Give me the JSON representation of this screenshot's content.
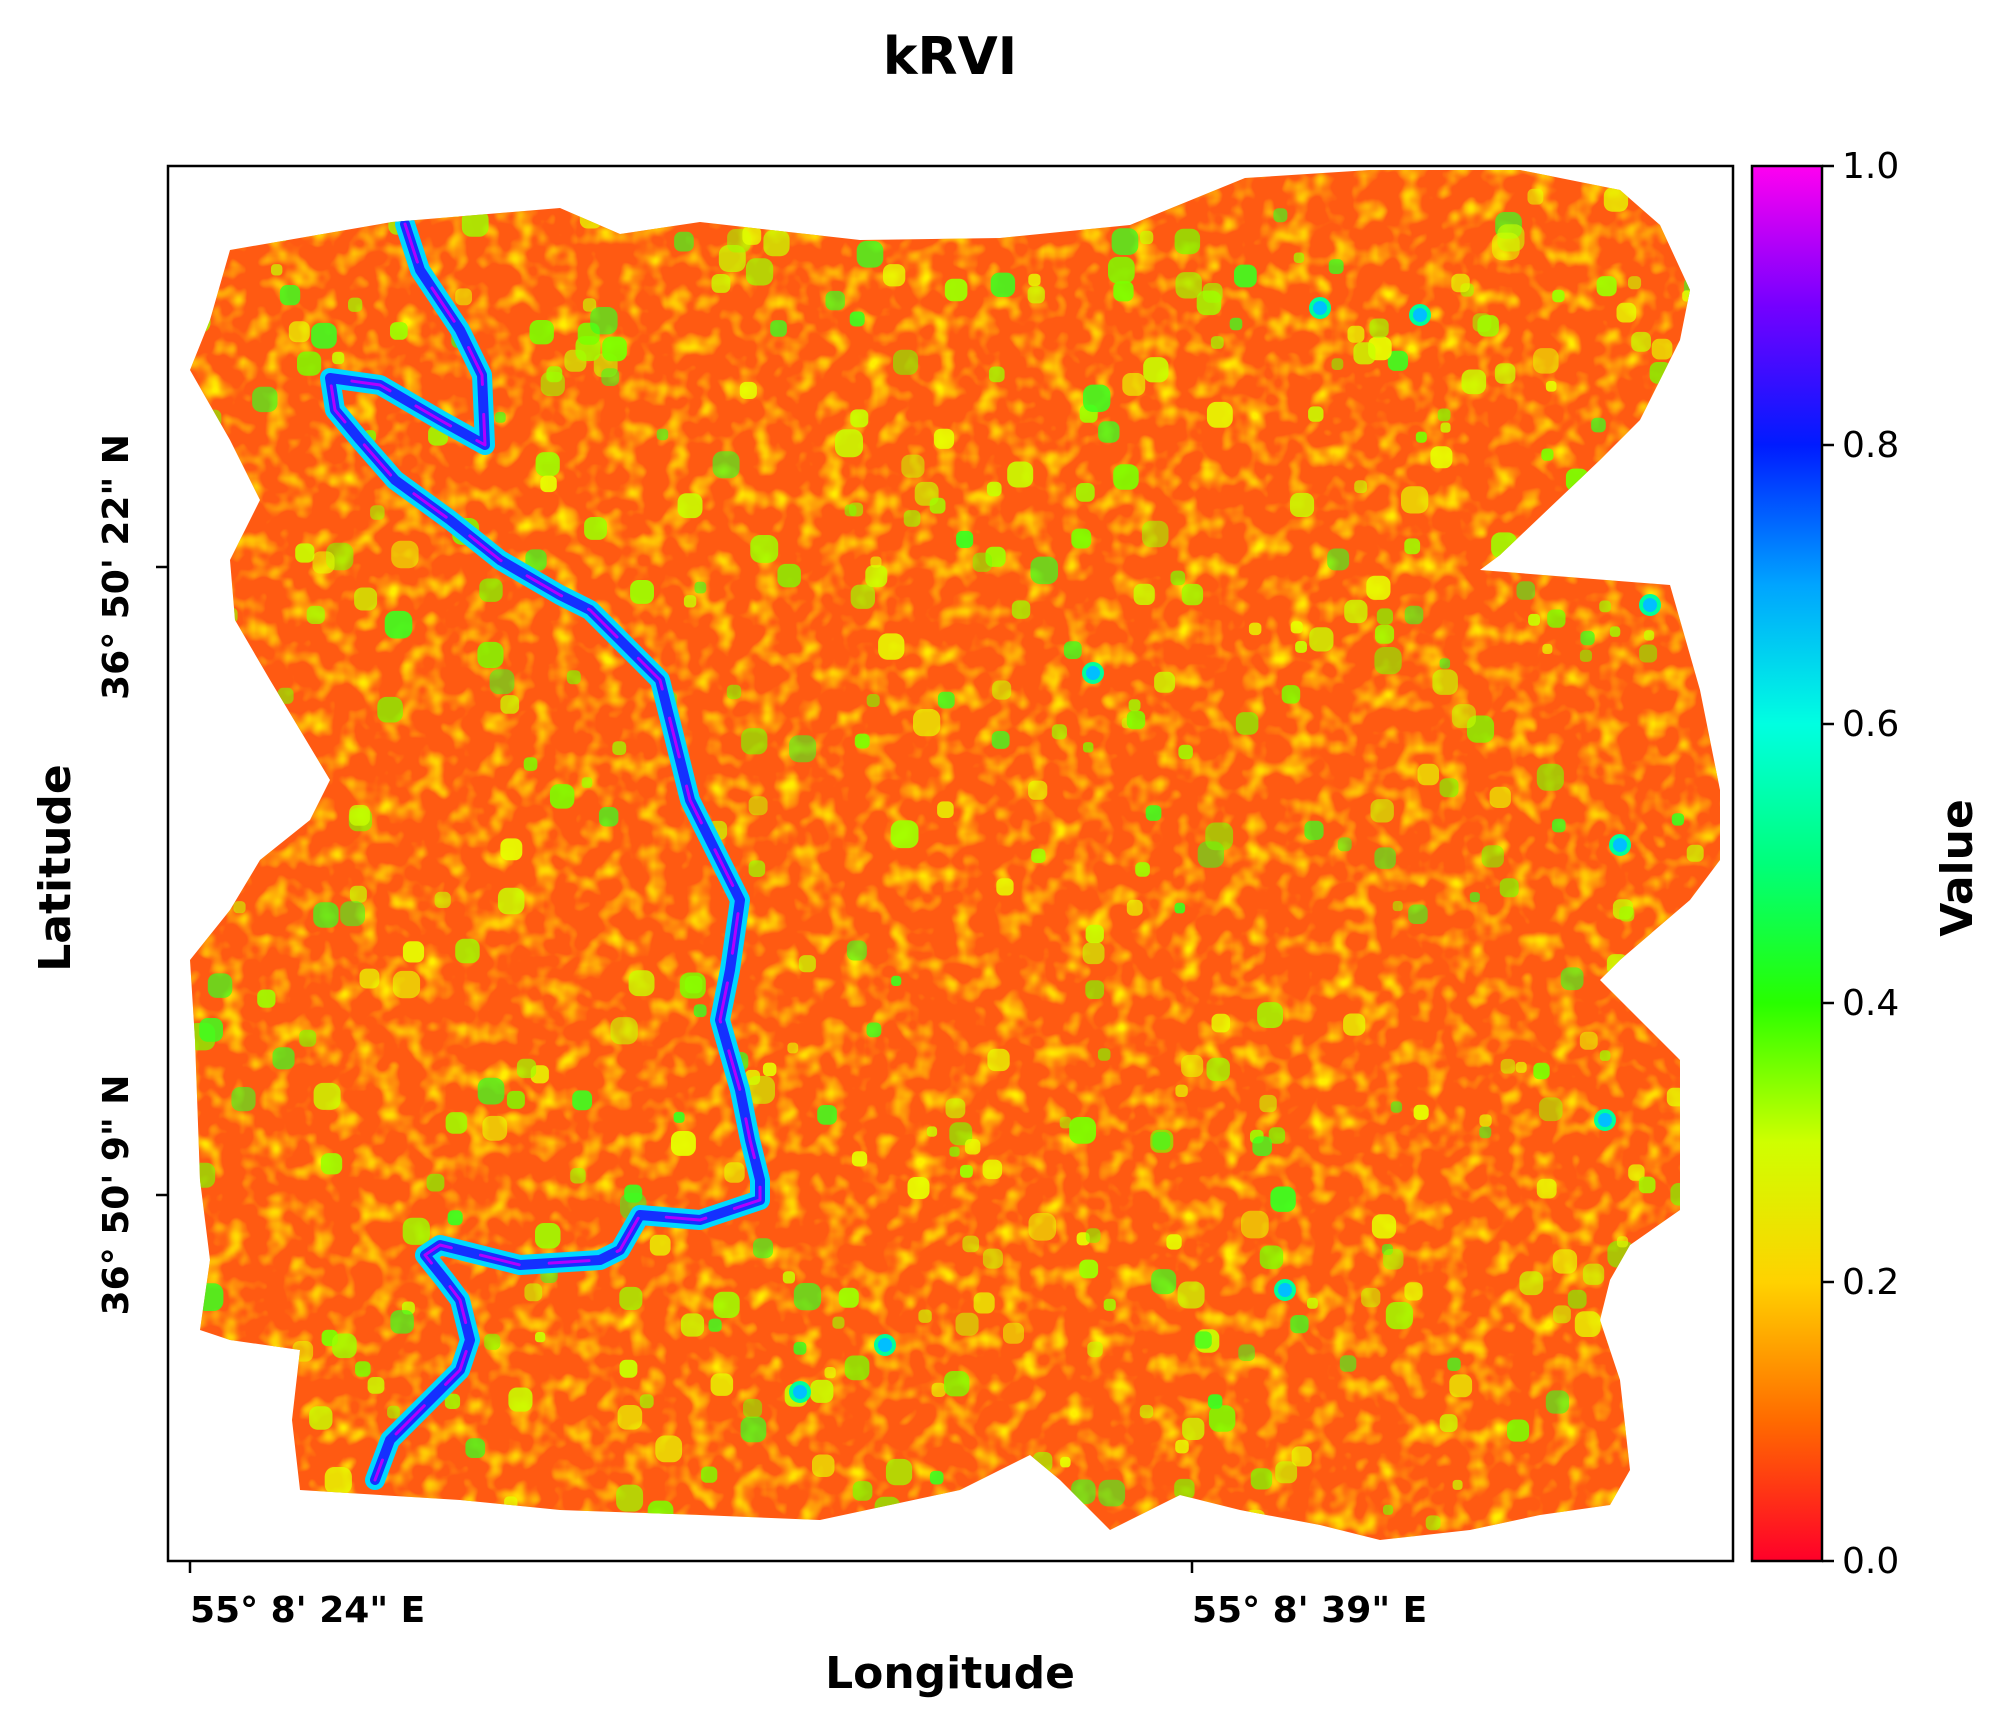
{
  "figure": {
    "title": "kRVI",
    "x_label": "Longitude",
    "y_label": "Latitude",
    "x_ticks": [
      "55° 8' 24\" E",
      "55° 8' 39\" E"
    ],
    "y_ticks": [
      "36° 50' 22\" N",
      "36° 50' 9\" N"
    ]
  },
  "colorbar": {
    "label": "Value",
    "ticks": [
      "0.0",
      "0.2",
      "0.4",
      "0.6",
      "0.8",
      "1.0"
    ],
    "range": [
      0.0,
      1.0
    ],
    "colormap": "gist_rainbow_r",
    "stops": [
      "#ff0029",
      "#ff6a00",
      "#ffd200",
      "#cfff00",
      "#28ff00",
      "#00ff7a",
      "#00ffe1",
      "#00a4ff",
      "#001bff",
      "#7500ff",
      "#ff00f0"
    ]
  },
  "map": {
    "background_value_range": [
      0.05,
      0.25
    ],
    "features": [
      {
        "name": "river",
        "value_range": [
          0.6,
          1.0
        ]
      },
      {
        "name": "scattered-vegetation-patches",
        "value_range": [
          0.3,
          0.5
        ]
      }
    ]
  }
}
